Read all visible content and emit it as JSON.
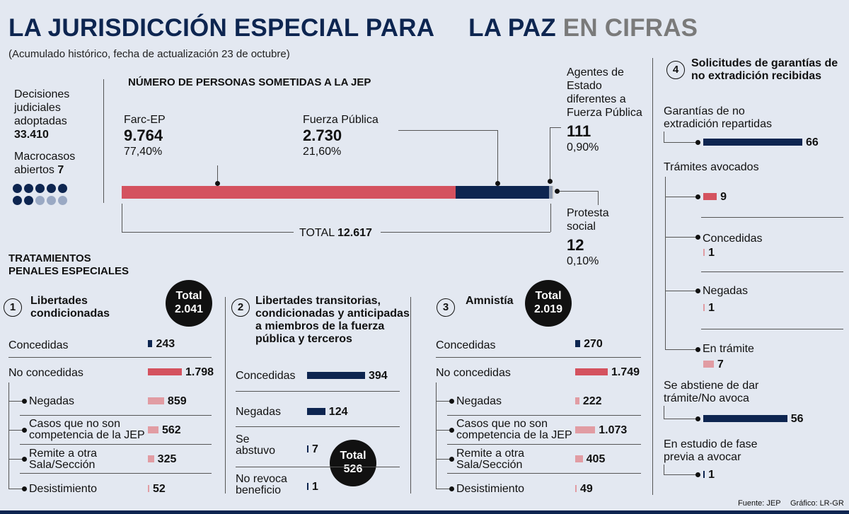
{
  "header": {
    "title_main": "LA JURISDICCIÓN ESPECIAL PARA",
    "title_mid": "LA PAZ",
    "title_gray": "EN CIFRAS",
    "subtitle": "(Acumulado histórico, fecha de actualización 23 de octubre)"
  },
  "summary": {
    "decisiones_label": "Decisiones judiciales adoptadas",
    "decisiones_value": "33.410",
    "macrocasos_label": "Macrocasos abiertos",
    "macrocasos_value": "7",
    "macrocasos_total_dots": 10,
    "macrocasos_filled": 7
  },
  "personas": {
    "heading": "NÚMERO DE PERSONAS SOMETIDAS A LA JEP",
    "farc_label": "Farc-EP",
    "farc_value": "9.764",
    "farc_pct": "77,40%",
    "fp_label": "Fuerza Pública",
    "fp_value": "2.730",
    "fp_pct": "21,60%",
    "agentes_label": "Agentes de Estado diferentes a Fuerza Pública",
    "agentes_value": "111",
    "agentes_pct": "0,90%",
    "protesta_label": "Protesta social",
    "protesta_value": "12",
    "protesta_pct": "0,10%",
    "total_label": "TOTAL",
    "total_value": "12.617"
  },
  "tratamientos": {
    "heading": "TRATAMIENTOS PENALES ESPECIALES"
  },
  "s1": {
    "num": "1",
    "title": "Libertades condicionadas",
    "total_label": "Total",
    "total_value": "2.041",
    "concedidas_label": "Concedidas",
    "concedidas_value": "243",
    "no_label": "No concedidas",
    "no_value": "1.798",
    "negadas_label": "Negadas",
    "negadas_value": "859",
    "casos_label": "Casos que no son competencia de la JEP",
    "casos_value": "562",
    "remite_label": "Remite a otra Sala/Sección",
    "remite_value": "325",
    "desist_label": "Desistimiento",
    "desist_value": "52"
  },
  "s2": {
    "num": "2",
    "title": "Libertades transitorias, condicionadas y anticipadas a miembros de la fuerza pública y terceros",
    "total_label": "Total",
    "total_value": "526",
    "concedidas_label": "Concedidas",
    "concedidas_value": "394",
    "negadas_label": "Negadas",
    "negadas_value": "124",
    "abstuvo_label": "Se abstuvo",
    "abstuvo_value": "7",
    "norevoca_label": "No revoca beneficio",
    "norevoca_value": "1"
  },
  "s3": {
    "num": "3",
    "title": "Amnistía",
    "total_label": "Total",
    "total_value": "2.019",
    "concedidas_label": "Concedidas",
    "concedidas_value": "270",
    "no_label": "No concedidas",
    "no_value": "1.749",
    "negadas_label": "Negadas",
    "negadas_value": "222",
    "casos_label": "Casos que no son competencia de la JEP",
    "casos_value": "1.073",
    "remite_label": "Remite a otra Sala/Sección",
    "remite_value": "405",
    "desist_label": "Desistimiento",
    "desist_value": "49"
  },
  "s4": {
    "num": "4",
    "title": "Solicitudes de garantías de no extradición recibidas",
    "garantias_label": "Garantías de no extradición repartidas",
    "garantias_value": "66",
    "tramites_label": "Trámites avocados",
    "tramites_value": "9",
    "concedidas_label": "Concedidas",
    "concedidas_value": "1",
    "negadas_label": "Negadas",
    "negadas_value": "1",
    "entramite_label": "En trámite",
    "entramite_value": "7",
    "abstiene_label": "Se abstiene de dar trámite/No avoca",
    "abstiene_value": "56",
    "estudio_label": "En estudio de fase previa a avocar",
    "estudio_value": "1"
  },
  "footer": {
    "fuente": "Fuente: JEP",
    "grafico": "Gráfico: LR-GR"
  },
  "colors": {
    "navy": "#0d2550",
    "red": "#d4525f",
    "pink": "#e19ca3",
    "gray": "#7a7a7a"
  },
  "chart_data": [
    {
      "type": "bar",
      "title": "NÚMERO DE PERSONAS SOMETIDAS A LA JEP",
      "categories": [
        "Farc-EP",
        "Fuerza Pública",
        "Agentes de Estado diferentes a Fuerza Pública",
        "Protesta social"
      ],
      "values": [
        9764,
        2730,
        111,
        12
      ],
      "percent": [
        77.4,
        21.6,
        0.9,
        0.1
      ],
      "total": 12617
    },
    {
      "type": "bar",
      "title": "Libertades condicionadas",
      "categories": [
        "Concedidas",
        "No concedidas",
        "Negadas",
        "Casos que no son competencia de la JEP",
        "Remite a otra Sala/Sección",
        "Desistimiento"
      ],
      "values": [
        243,
        1798,
        859,
        562,
        325,
        52
      ],
      "total": 2041
    },
    {
      "type": "bar",
      "title": "Libertades transitorias, condicionadas y anticipadas a miembros de la fuerza pública y terceros",
      "categories": [
        "Concedidas",
        "Negadas",
        "Se abstuvo",
        "No revoca beneficio"
      ],
      "values": [
        394,
        124,
        7,
        1
      ],
      "total": 526
    },
    {
      "type": "bar",
      "title": "Amnistía",
      "categories": [
        "Concedidas",
        "No concedidas",
        "Negadas",
        "Casos que no son competencia de la JEP",
        "Remite a otra Sala/Sección",
        "Desistimiento"
      ],
      "values": [
        270,
        1749,
        222,
        1073,
        405,
        49
      ],
      "total": 2019
    },
    {
      "type": "bar",
      "title": "Solicitudes de garantías de no extradición recibidas",
      "categories": [
        "Garantías de no extradición repartidas",
        "Trámites avocados",
        "Concedidas",
        "Negadas",
        "En trámite",
        "Se abstiene de dar trámite/No avoca",
        "En estudio de fase previa a avocar"
      ],
      "values": [
        66,
        9,
        1,
        1,
        7,
        56,
        1
      ]
    }
  ]
}
